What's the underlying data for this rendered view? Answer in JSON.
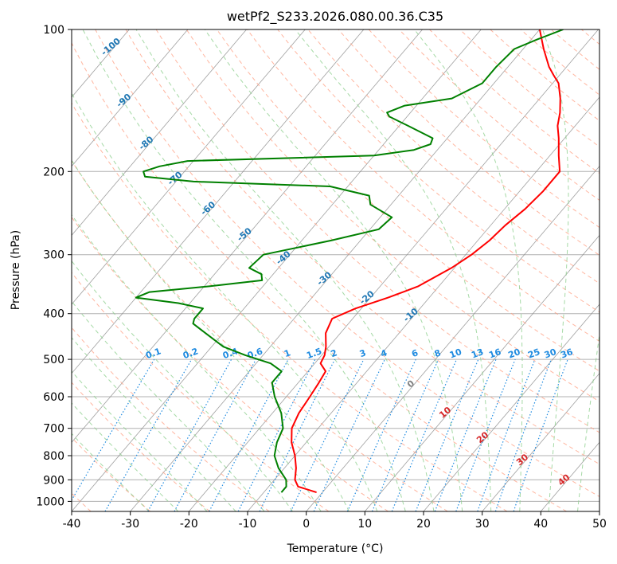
{
  "chart_data": {
    "type": "skew-t log-p",
    "title": "wetPf2_S233.2026.080.00.36.C35",
    "xlabel": "Temperature (°C)",
    "ylabel": "Pressure (hPa)",
    "xlim": [
      -40,
      50
    ],
    "ylim": [
      1050,
      100
    ],
    "y_scale": "log",
    "x_ticks": [
      -40,
      -30,
      -20,
      -10,
      0,
      10,
      20,
      30,
      40,
      50
    ],
    "y_ticks": [
      1000,
      900,
      800,
      700,
      600,
      500,
      400,
      300,
      200,
      100
    ],
    "grid": true,
    "series": [
      {
        "color": "#ff0000",
        "points": [
          [
            957,
            -1.0
          ],
          [
            930,
            -5.0
          ],
          [
            900,
            -6.5
          ],
          [
            850,
            -8.0
          ],
          [
            800,
            -10.0
          ],
          [
            750,
            -12.5
          ],
          [
            700,
            -14.5
          ],
          [
            650,
            -15.5
          ],
          [
            600,
            -16.0
          ],
          [
            560,
            -16.5
          ],
          [
            530,
            -17.0
          ],
          [
            510,
            -19.0
          ],
          [
            490,
            -19.5
          ],
          [
            470,
            -20.5
          ],
          [
            440,
            -22.5
          ],
          [
            410,
            -23.5
          ],
          [
            390,
            -21.0
          ],
          [
            370,
            -17.0
          ],
          [
            350,
            -13.5
          ],
          [
            320,
            -10.5
          ],
          [
            300,
            -9.0
          ],
          [
            280,
            -8.0
          ],
          [
            260,
            -7.5
          ],
          [
            240,
            -6.5
          ],
          [
            220,
            -6.0
          ],
          [
            200,
            -6.0
          ],
          [
            185,
            -8.5
          ],
          [
            170,
            -11.0
          ],
          [
            160,
            -13.0
          ],
          [
            150,
            -14.5
          ],
          [
            140,
            -16.5
          ],
          [
            130,
            -19.0
          ],
          [
            125,
            -21.0
          ],
          [
            120,
            -23.0
          ],
          [
            110,
            -26.5
          ],
          [
            100,
            -30.0
          ]
        ]
      },
      {
        "color": "#008000",
        "points": [
          [
            957,
            -7.0
          ],
          [
            930,
            -7.0
          ],
          [
            900,
            -8.0
          ],
          [
            850,
            -11.0
          ],
          [
            800,
            -13.5
          ],
          [
            750,
            -15.0
          ],
          [
            700,
            -16.0
          ],
          [
            650,
            -18.5
          ],
          [
            600,
            -22.0
          ],
          [
            560,
            -24.5
          ],
          [
            530,
            -24.5
          ],
          [
            510,
            -27.5
          ],
          [
            490,
            -33.0
          ],
          [
            470,
            -38.0
          ],
          [
            440,
            -43.0
          ],
          [
            420,
            -46.5
          ],
          [
            410,
            -47.0
          ],
          [
            400,
            -47.0
          ],
          [
            390,
            -47.0
          ],
          [
            380,
            -52.0
          ],
          [
            370,
            -60.0
          ],
          [
            360,
            -58.5
          ],
          [
            350,
            -49.0
          ],
          [
            340,
            -41.0
          ],
          [
            330,
            -42.0
          ],
          [
            320,
            -45.0
          ],
          [
            300,
            -44.5
          ],
          [
            280,
            -35.0
          ],
          [
            265,
            -28.5
          ],
          [
            250,
            -28.0
          ],
          [
            235,
            -33.5
          ],
          [
            225,
            -35.0
          ],
          [
            215,
            -43.0
          ],
          [
            210,
            -67.0
          ],
          [
            205,
            -76.0
          ],
          [
            200,
            -77.0
          ],
          [
            195,
            -75.0
          ],
          [
            190,
            -71.0
          ],
          [
            185,
            -40.0
          ],
          [
            180,
            -34.0
          ],
          [
            175,
            -32.0
          ],
          [
            170,
            -32.5
          ],
          [
            160,
            -38.5
          ],
          [
            153,
            -43.0
          ],
          [
            150,
            -44.0
          ],
          [
            145,
            -42.0
          ],
          [
            140,
            -35.0
          ],
          [
            130,
            -32.0
          ],
          [
            120,
            -32.0
          ],
          [
            110,
            -31.5
          ],
          [
            105,
            -29.0
          ],
          [
            100,
            -26.0
          ]
        ]
      }
    ],
    "dry_adiabats": [
      -100,
      -90,
      -80,
      -70,
      -60,
      -50,
      -40,
      -30,
      -20,
      -10
    ],
    "moist_adiabats": [
      0,
      10,
      20,
      30,
      40
    ],
    "mixing_ratio_lines": [
      0.1,
      0.2,
      0.4,
      0.6,
      1,
      1.5,
      2,
      3,
      4,
      6,
      8,
      10,
      13,
      16,
      20,
      25,
      30,
      36
    ],
    "colors": {
      "temperature": "#ff0000",
      "dewpoint": "#008000",
      "isotherm": "#808080",
      "isobar": "#b0b0b0",
      "dry_adiabat": "#ff9e80",
      "moist_adiabat": "#8fcf8f",
      "mixing_ratio": "#1f8be0",
      "dry_adiabat_label": "#1f77b4",
      "moist_adiabat_label": "#d62728",
      "mixing_ratio_label": "#1f8be0"
    }
  }
}
